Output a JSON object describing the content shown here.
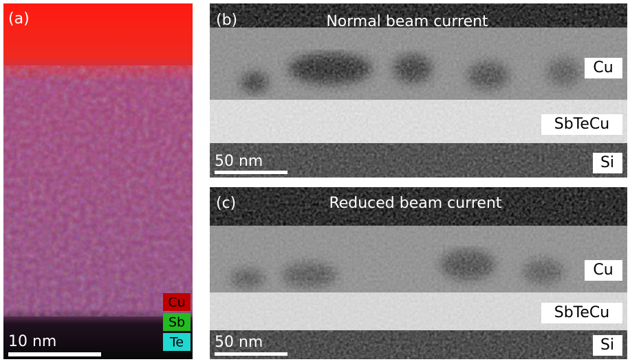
{
  "panels": [
    {
      "label": "(a)",
      "scale_bar": "10 nm",
      "legend": [
        "Cu",
        "Sb",
        "Te"
      ]
    },
    {
      "label": "(b)",
      "title": "Normal beam current",
      "layers": [
        "Cu",
        "SbTeCu",
        "Si"
      ],
      "scale_bar": "50 nm"
    },
    {
      "label": "(c)",
      "title": "Reduced beam current",
      "layers": [
        "Cu",
        "SbTeCu",
        "Si"
      ],
      "scale_bar": "50 nm"
    }
  ]
}
